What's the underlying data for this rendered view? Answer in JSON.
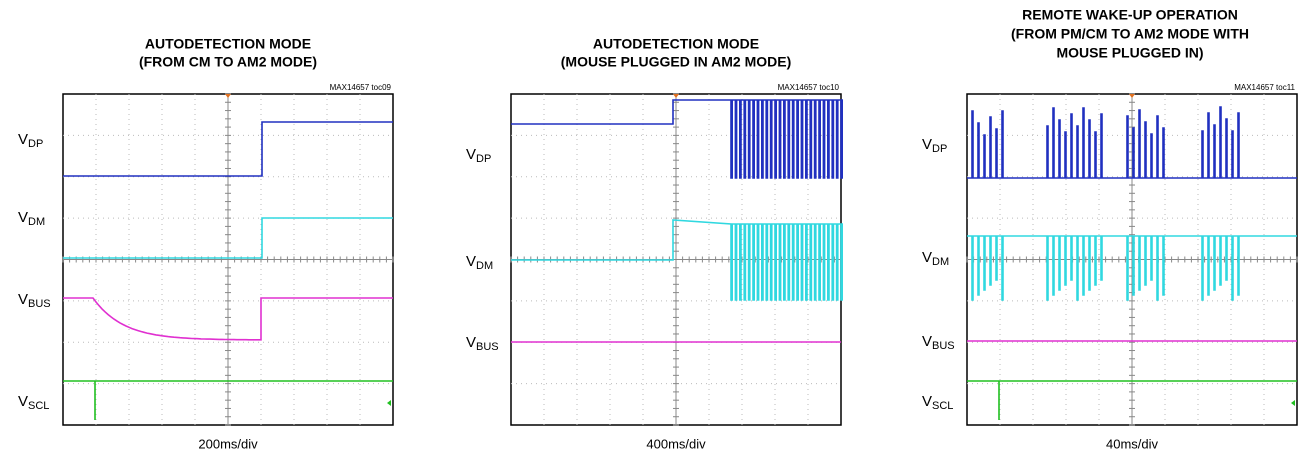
{
  "panels": [
    {
      "title": [
        "AUTODETECTION MODE",
        "(FROM CM TO AM2 MODE)"
      ],
      "code": "MAX14657 toc09",
      "signals": [
        {
          "main": "V",
          "sub": "DP"
        },
        {
          "main": "V",
          "sub": "DM"
        },
        {
          "main": "V",
          "sub": "BUS"
        },
        {
          "main": "V",
          "sub": "SCL"
        }
      ],
      "timebase": "200ms/div"
    },
    {
      "title": [
        "AUTODETECTION MODE",
        "(MOUSE PLUGGED IN AM2 MODE)"
      ],
      "code": "MAX14657 toc10",
      "signals": [
        {
          "main": "V",
          "sub": "DP"
        },
        {
          "main": "V",
          "sub": "DM"
        },
        {
          "main": "V",
          "sub": "BUS"
        }
      ],
      "timebase": "400ms/div"
    },
    {
      "title": [
        "REMOTE WAKE-UP OPERATION",
        "(FROM PM/CM TO AM2 MODE WITH",
        "MOUSE PLUGGED IN)"
      ],
      "code": "MAX14657 toc11",
      "signals": [
        {
          "main": "V",
          "sub": "DP"
        },
        {
          "main": "V",
          "sub": "DM"
        },
        {
          "main": "V",
          "sub": "BUS"
        },
        {
          "main": "V",
          "sub": "SCL"
        }
      ],
      "timebase": "40ms/div"
    }
  ]
}
